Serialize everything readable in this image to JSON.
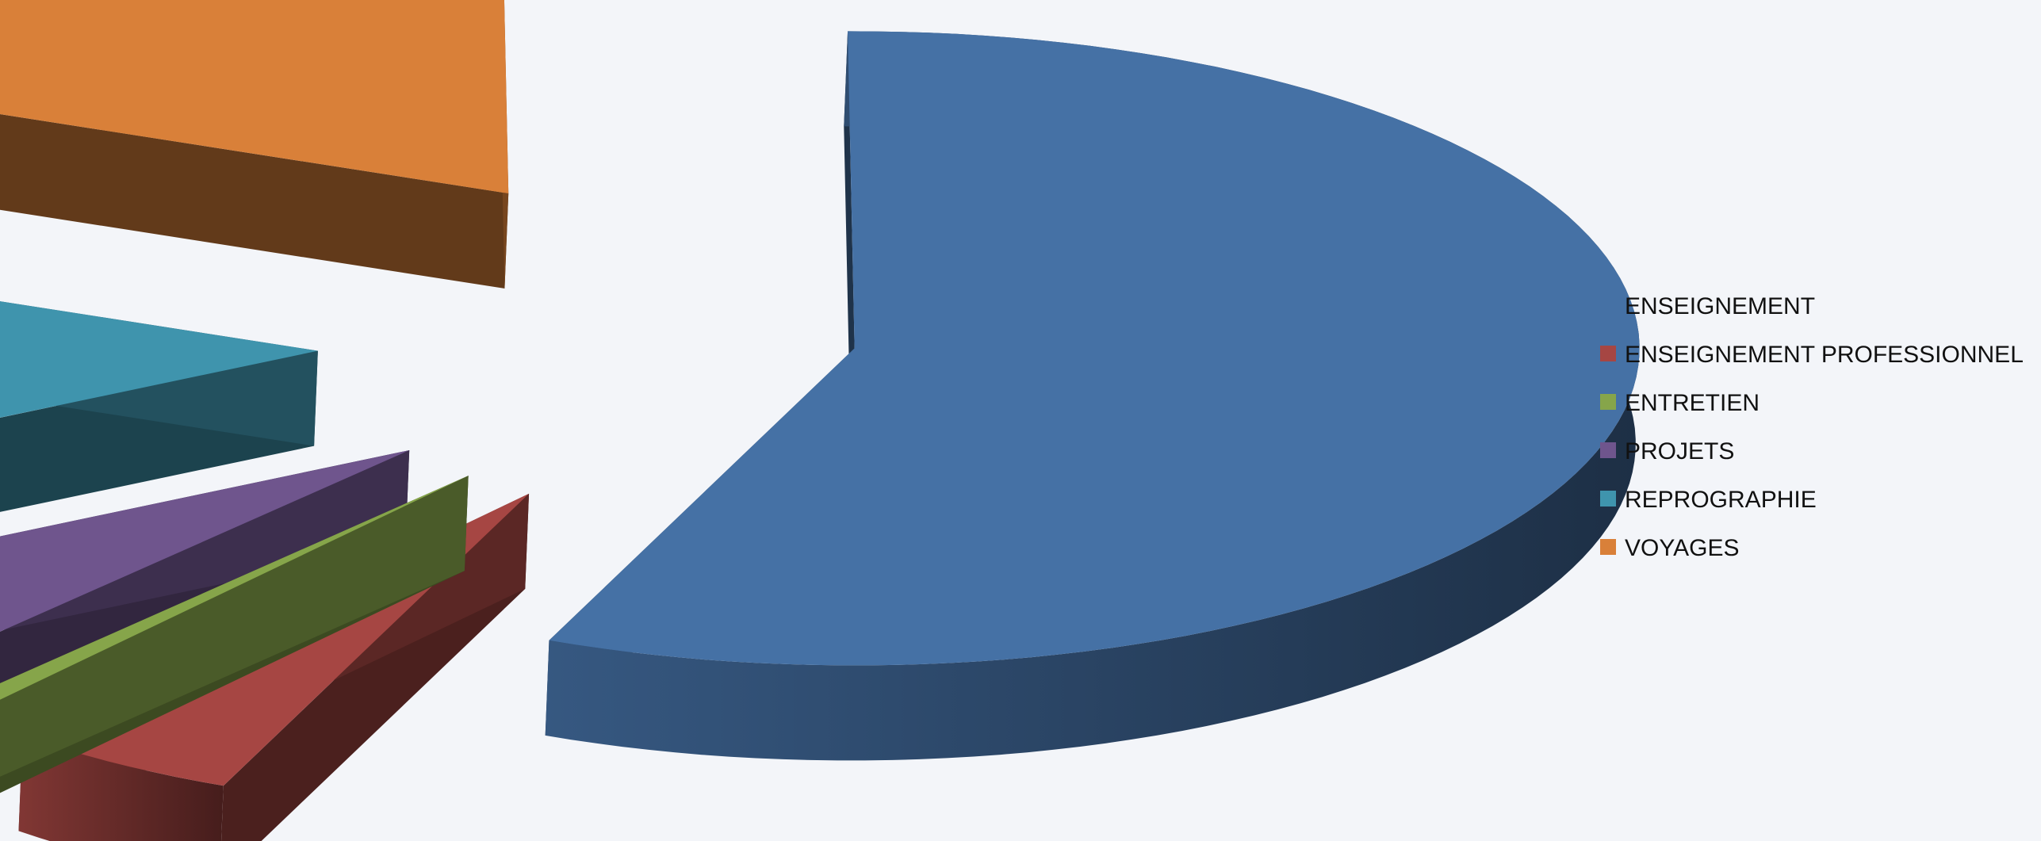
{
  "chart_data": {
    "type": "pie",
    "variant": "3d-exploded",
    "title": "",
    "slices": [
      {
        "label": "ENSEIGNEMENT",
        "value": 56.5,
        "color": "#4571a5"
      },
      {
        "label": "ENSEIGNEMENT PROFESSIONNEL",
        "value": 4.8,
        "color": "#a64643"
      },
      {
        "label": "ENTRETIEN",
        "value": 0.6,
        "color": "#86a54a"
      },
      {
        "label": "PROJETS",
        "value": 5.6,
        "color": "#6f558d"
      },
      {
        "label": "REPROGRAPHIE",
        "value": 13.5,
        "color": "#3f94ad"
      },
      {
        "label": "VOYAGES",
        "value": 19.0,
        "color": "#d98039"
      }
    ],
    "legend_position": "right",
    "background": "#f3f5f9"
  }
}
